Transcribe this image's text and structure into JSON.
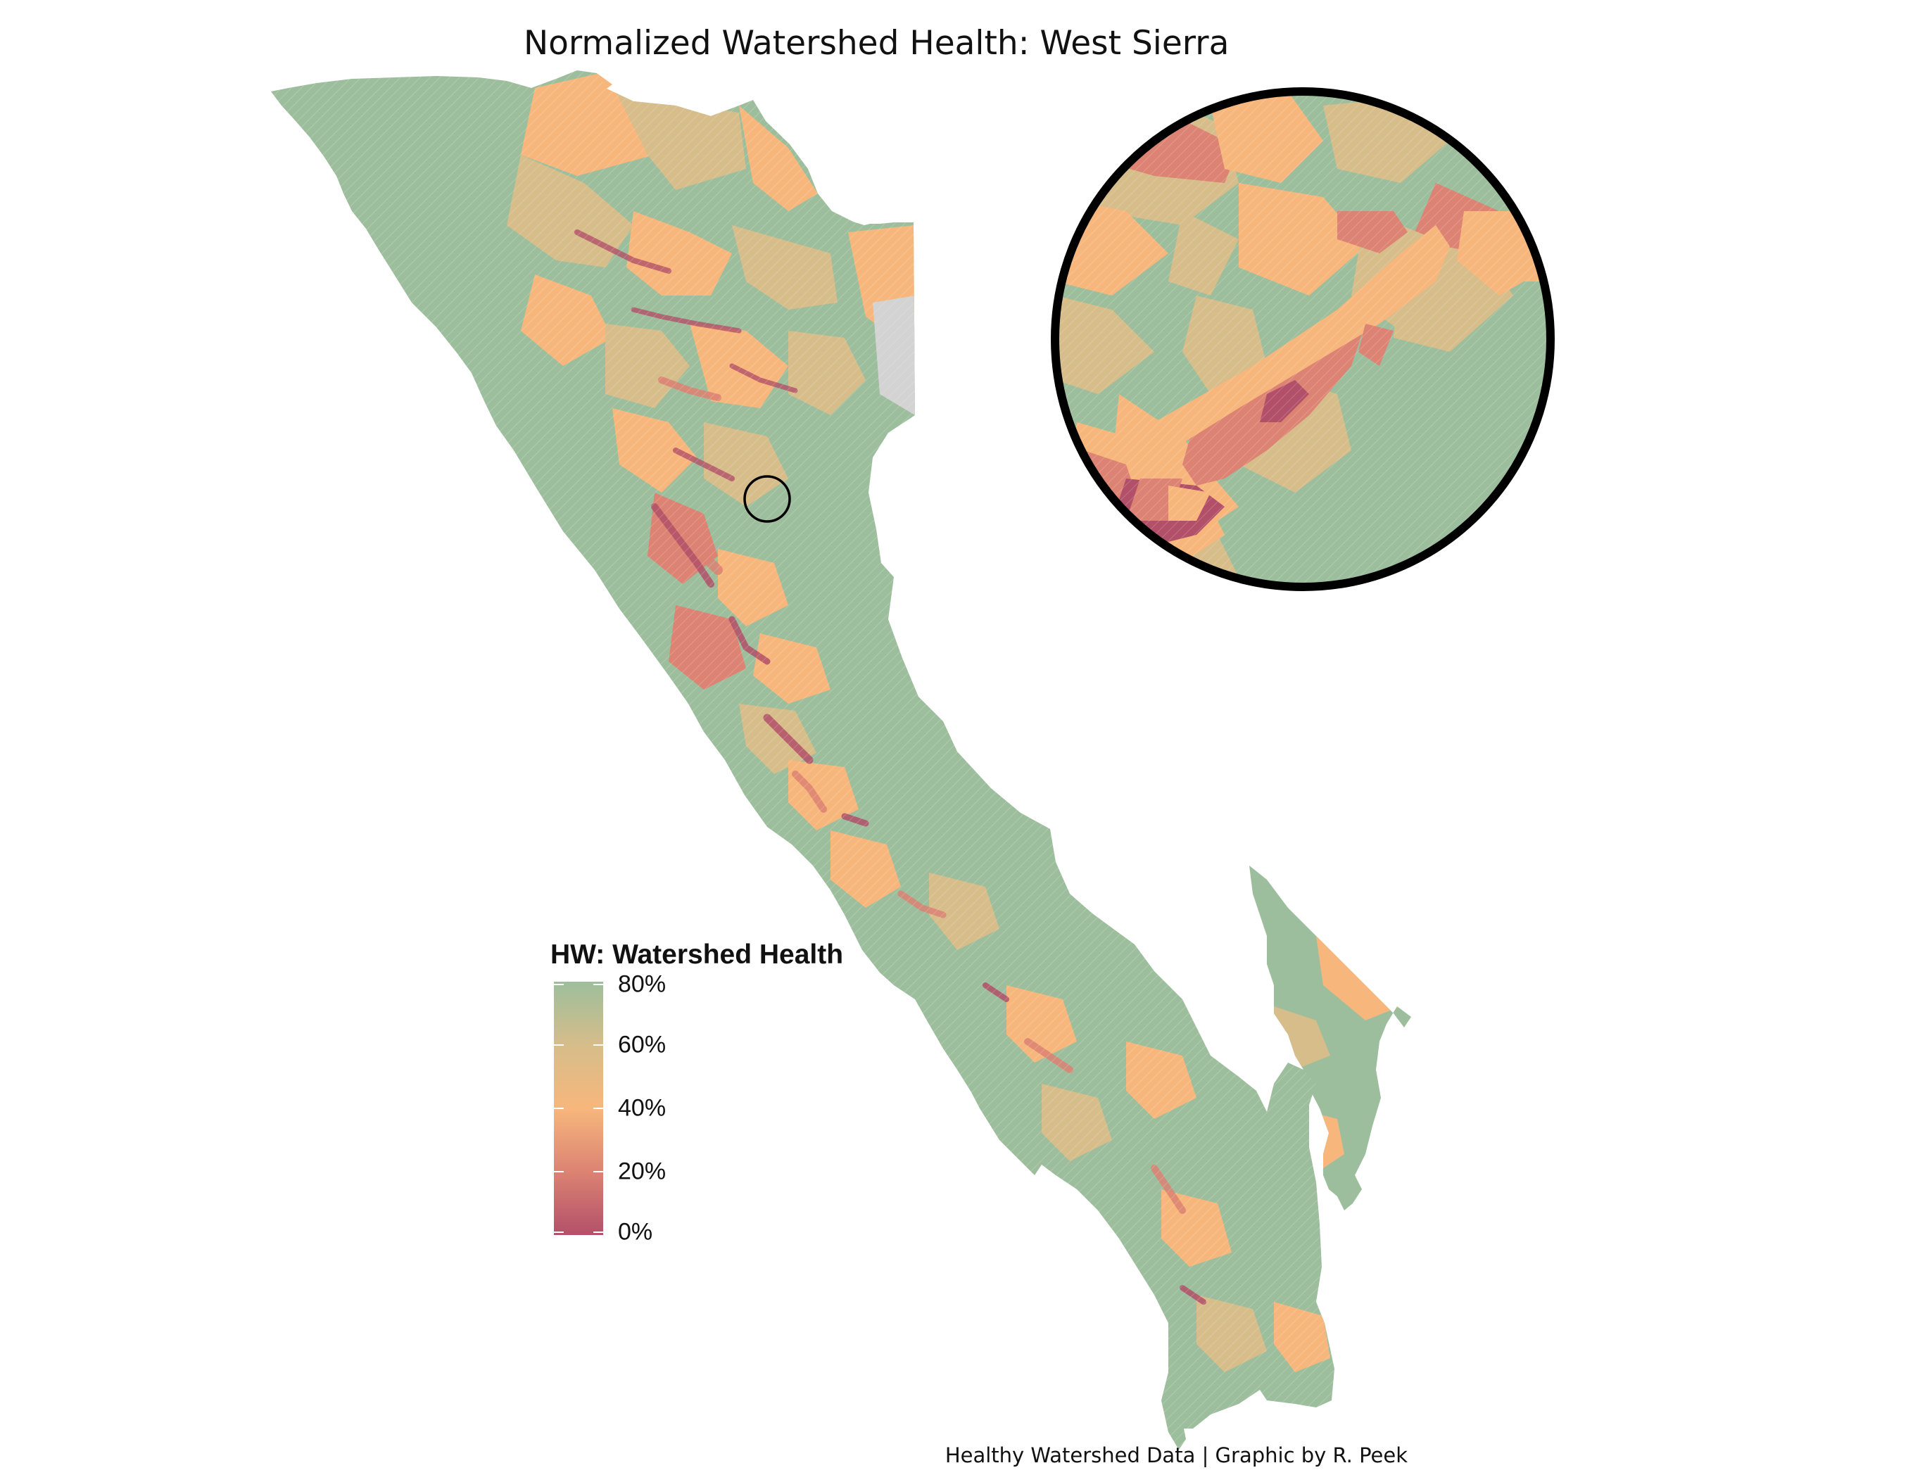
{
  "title": "Normalized Watershed Health: West Sierra",
  "caption": "Healthy Watershed Data | Graphic by R. Peek",
  "legend": {
    "title": "HW: Watershed Health",
    "labels": [
      "80%",
      "60%",
      "40%",
      "20%",
      "0%"
    ],
    "values": [
      0.8,
      0.6,
      0.4,
      0.2,
      0.0
    ]
  },
  "colors": {
    "high": "#9dbe9c",
    "upper_mid": "#d6bd8a",
    "mid": "#f7b77c",
    "lower_mid": "#dc8373",
    "low": "#b35069",
    "no_data": "#d3d3d3",
    "inset_border": "#000000"
  }
}
